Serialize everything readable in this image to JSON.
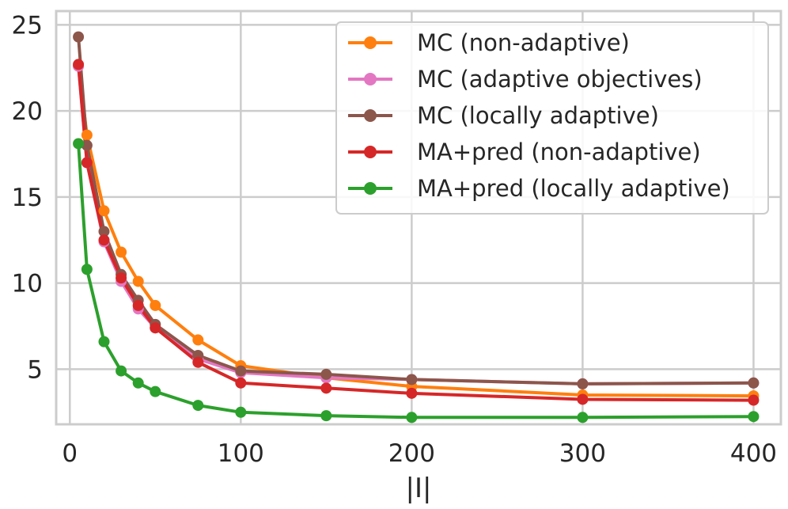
{
  "chart_data": {
    "type": "line",
    "title": "",
    "xlabel": "|I|",
    "ylabel": "",
    "xlim": [
      -8,
      416
    ],
    "ylim": [
      1.8,
      25.8
    ],
    "xticks": [
      0,
      100,
      200,
      300,
      400
    ],
    "yticks": [
      5,
      10,
      15,
      20,
      25
    ],
    "grid": true,
    "legend_position": "top-right",
    "x": [
      5,
      10,
      20,
      30,
      40,
      50,
      75,
      100,
      150,
      200,
      300,
      400
    ],
    "series": [
      {
        "name": "MC (non-adaptive)",
        "color": "#ff7f0e",
        "values": [
          22.6,
          18.6,
          14.2,
          11.8,
          10.1,
          8.7,
          6.7,
          5.2,
          4.5,
          4.0,
          3.5,
          3.45
        ]
      },
      {
        "name": "MC (adaptive objectives)",
        "color": "#e377c2",
        "values": [
          22.6,
          17.0,
          12.4,
          10.1,
          8.5,
          7.4,
          5.6,
          4.8,
          4.5,
          4.4,
          4.15,
          4.2
        ]
      },
      {
        "name": "MC (locally adaptive)",
        "color": "#8c564b",
        "values": [
          24.3,
          18.0,
          13.0,
          10.5,
          9.0,
          7.6,
          5.8,
          4.9,
          4.7,
          4.4,
          4.15,
          4.2
        ]
      },
      {
        "name": "MA+pred (non-adaptive)",
        "color": "#d62728",
        "values": [
          22.7,
          17.0,
          12.5,
          10.3,
          8.7,
          7.4,
          5.4,
          4.2,
          3.9,
          3.6,
          3.25,
          3.2
        ]
      },
      {
        "name": "MA+pred (locally adaptive)",
        "color": "#2ca02c",
        "values": [
          18.1,
          10.8,
          6.6,
          4.9,
          4.2,
          3.7,
          2.9,
          2.5,
          2.3,
          2.2,
          2.2,
          2.25
        ]
      }
    ]
  }
}
